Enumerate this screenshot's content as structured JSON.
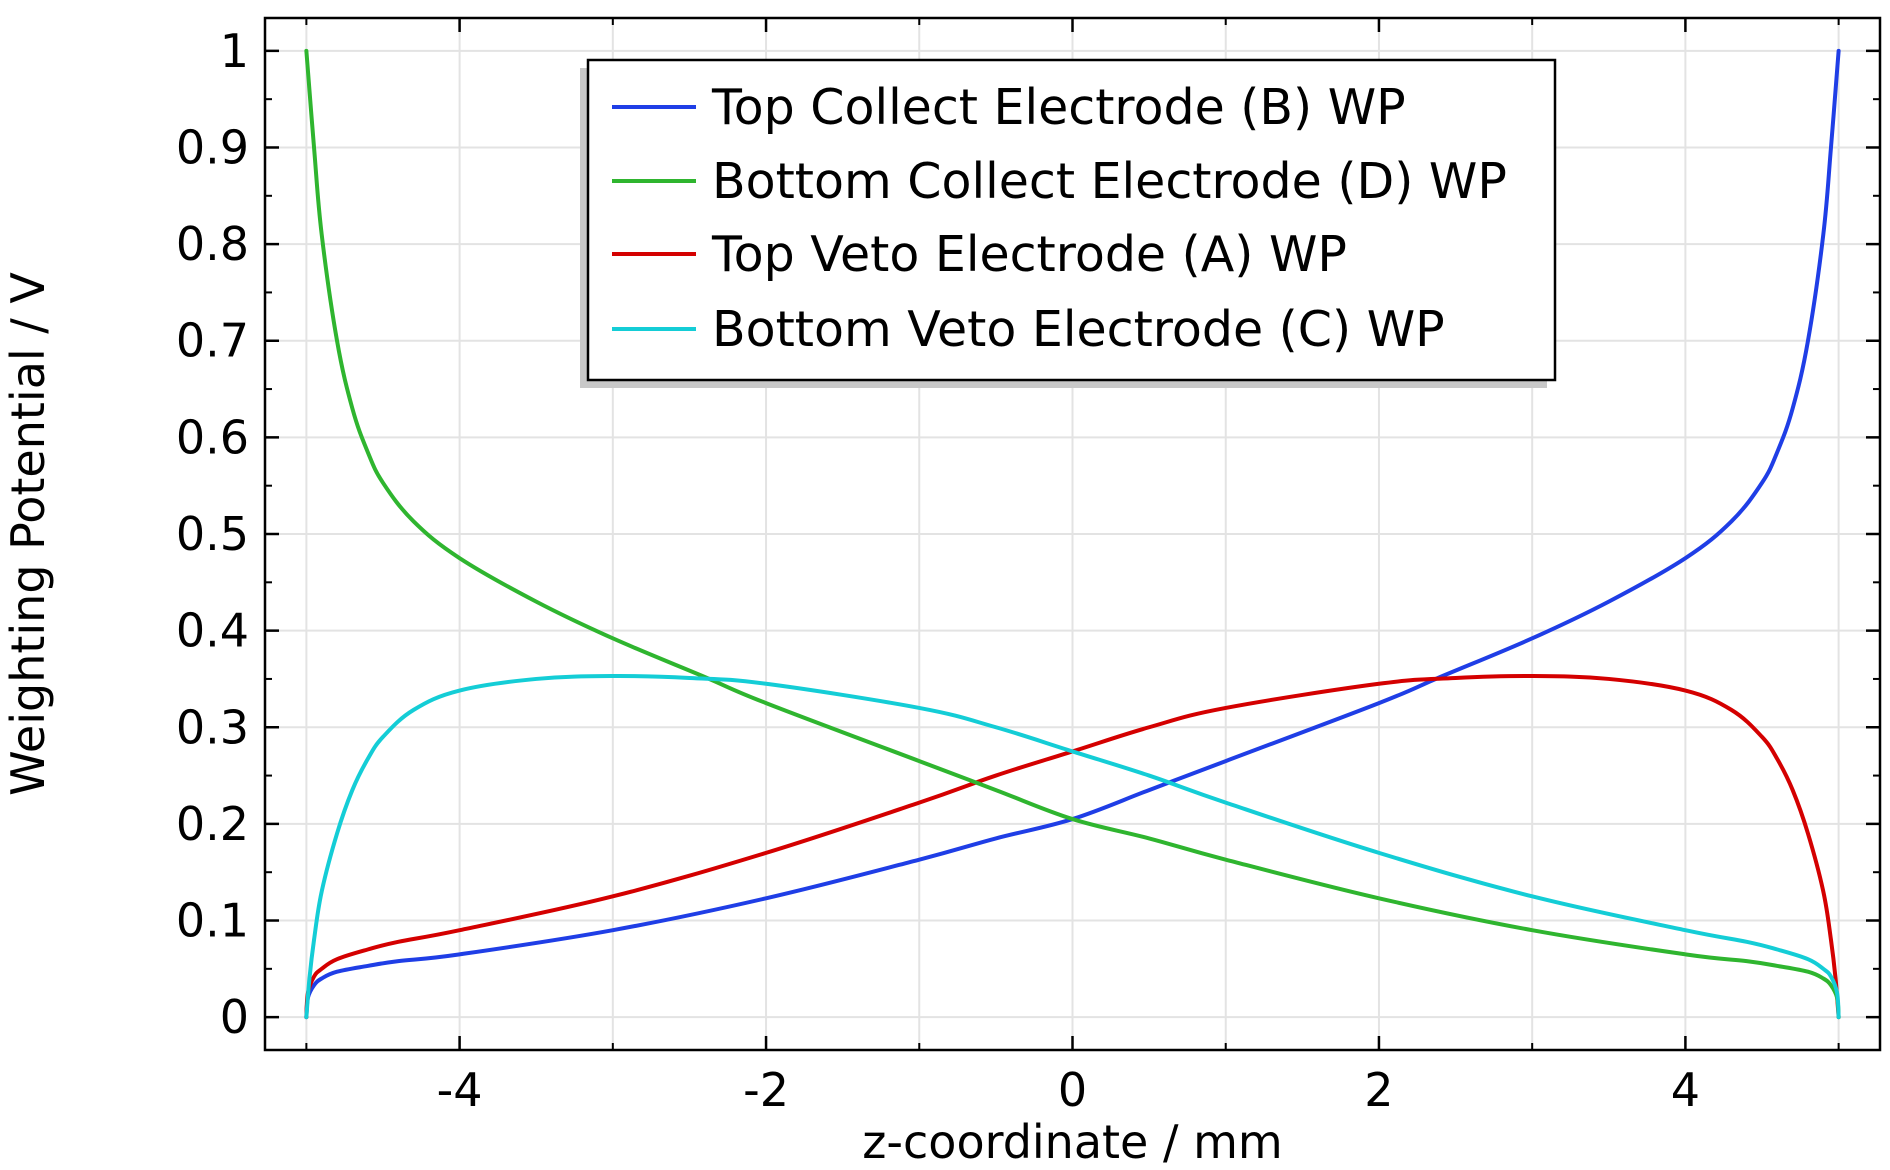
{
  "chart_data": {
    "type": "line",
    "title": "",
    "xlabel": "z-coordinate / mm",
    "ylabel": "Weighting Potential / V",
    "xlim": [
      -5.27,
      5.27
    ],
    "ylim": [
      -0.034,
      1.034
    ],
    "xticks": [
      -4,
      -2,
      0,
      2,
      4
    ],
    "xtick_labels": [
      "-4",
      "-2",
      "0",
      "2",
      "4"
    ],
    "yticks": [
      0,
      0.1,
      0.2,
      0.3,
      0.4,
      0.5,
      0.6,
      0.7,
      0.8,
      0.9,
      1
    ],
    "ytick_labels": [
      "0",
      "0.1",
      "0.2",
      "0.3",
      "0.4",
      "0.5",
      "0.6",
      "0.7",
      "0.8",
      "0.9",
      "1"
    ],
    "grid": true,
    "legend_position": "top-center",
    "series": [
      {
        "name": "Top Collect Electrode (B) WP",
        "color": "#1f3ee6",
        "x": [
          -5,
          -4.99,
          -4.95,
          -4.9,
          -4.8,
          -4.6,
          -4.4,
          -4,
          -3,
          -2,
          -1,
          -0.5,
          0,
          0.5,
          1,
          2,
          2.4,
          3,
          3.5,
          4,
          4.3,
          4.5,
          4.6,
          4.7,
          4.8,
          4.9,
          4.95,
          5
        ],
        "y": [
          0,
          0.02,
          0.033,
          0.04,
          0.047,
          0.053,
          0.058,
          0.065,
          0.09,
          0.123,
          0.163,
          0.185,
          0.205,
          0.235,
          0.265,
          0.325,
          0.352,
          0.392,
          0.43,
          0.475,
          0.513,
          0.553,
          0.585,
          0.63,
          0.7,
          0.81,
          0.9,
          1
        ]
      },
      {
        "name": "Bottom Collect Electrode (D) WP",
        "color": "#2fb52f",
        "x": [
          -5,
          -4.95,
          -4.9,
          -4.8,
          -4.7,
          -4.6,
          -4.5,
          -4.3,
          -4,
          -3.5,
          -3,
          -2.4,
          -2,
          -1,
          -0.5,
          0,
          0.5,
          1,
          2,
          3,
          4,
          4.4,
          4.6,
          4.8,
          4.9,
          4.95,
          4.99,
          5
        ],
        "y": [
          1,
          0.9,
          0.81,
          0.7,
          0.63,
          0.585,
          0.553,
          0.513,
          0.475,
          0.43,
          0.392,
          0.352,
          0.325,
          0.265,
          0.235,
          0.205,
          0.185,
          0.163,
          0.123,
          0.09,
          0.065,
          0.058,
          0.053,
          0.047,
          0.04,
          0.033,
          0.02,
          0
        ]
      },
      {
        "name": "Top Veto Electrode (A) WP",
        "color": "#d40000",
        "x": [
          -5,
          -4.99,
          -4.95,
          -4.9,
          -4.8,
          -4.6,
          -4.4,
          -4,
          -3,
          -2,
          -1,
          -0.5,
          0,
          0.5,
          1,
          2,
          2.5,
          3,
          3.5,
          4,
          4.3,
          4.5,
          4.6,
          4.7,
          4.8,
          4.9,
          4.95,
          4.98,
          5
        ],
        "y": [
          0,
          0.025,
          0.042,
          0.05,
          0.06,
          0.07,
          0.078,
          0.09,
          0.125,
          0.17,
          0.222,
          0.25,
          0.275,
          0.3,
          0.32,
          0.345,
          0.351,
          0.353,
          0.35,
          0.338,
          0.318,
          0.29,
          0.267,
          0.235,
          0.19,
          0.13,
          0.08,
          0.04,
          0
        ]
      },
      {
        "name": "Bottom Veto Electrode (C) WP",
        "color": "#14cdd6",
        "x": [
          -5,
          -4.98,
          -4.95,
          -4.9,
          -4.8,
          -4.7,
          -4.6,
          -4.5,
          -4.3,
          -4,
          -3.5,
          -3,
          -2.5,
          -2,
          -1,
          -0.5,
          0,
          0.5,
          1,
          2,
          3,
          4,
          4.4,
          4.6,
          4.8,
          4.9,
          4.95,
          4.99,
          5
        ],
        "y": [
          0,
          0.04,
          0.08,
          0.13,
          0.19,
          0.235,
          0.267,
          0.29,
          0.318,
          0.338,
          0.35,
          0.353,
          0.351,
          0.345,
          0.32,
          0.3,
          0.275,
          0.25,
          0.222,
          0.17,
          0.125,
          0.09,
          0.078,
          0.07,
          0.06,
          0.05,
          0.042,
          0.025,
          0
        ]
      }
    ]
  }
}
